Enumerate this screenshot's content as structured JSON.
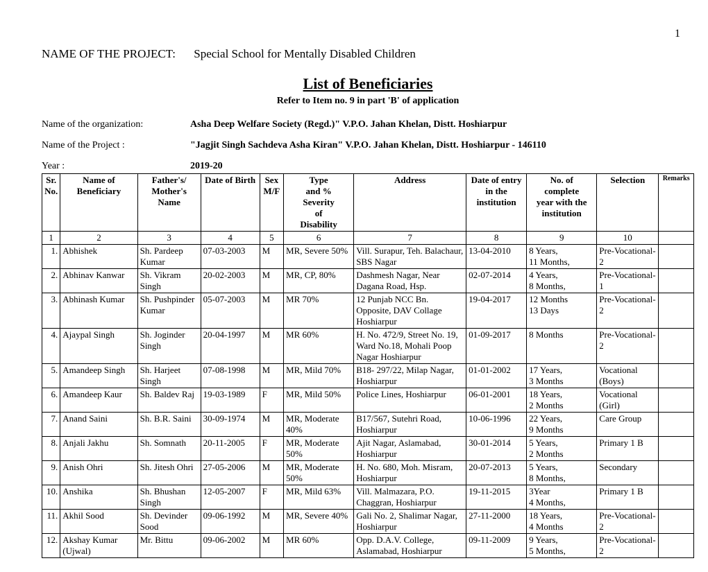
{
  "page_number": "1",
  "project_line": {
    "label": "NAME OF THE PROJECT:",
    "value": "Special School for Mentally Disabled Children"
  },
  "title": "List of Beneficiaries",
  "subtitle": "Refer to Item no. 9 in part 'B' of application",
  "meta": [
    {
      "label": "Name of the organization:",
      "value": "Asha Deep Welfare Society (Regd.)\" V.P.O. Jahan Khelan, Distt. Hoshiarpur"
    },
    {
      "label": "Name of the Project      :",
      "value": "\"Jagjit Singh Sachdeva Asha Kiran\" V.P.O. Jahan Khelan, Distt. Hoshiarpur - 146110"
    },
    {
      "label": "Year                             :",
      "value": "2019-20"
    }
  ],
  "columns": [
    {
      "key": "sr",
      "label": "Sr.\nNo.",
      "num": "1",
      "cls": "c-sr"
    },
    {
      "key": "name",
      "label": "Name of\nBeneficiary",
      "num": "2",
      "cls": "c-name"
    },
    {
      "key": "fname",
      "label": "Father's/\nMother's\nName",
      "num": "3",
      "cls": "c-fname"
    },
    {
      "key": "dob",
      "label": "Date of Birth",
      "num": "4",
      "cls": "c-dob"
    },
    {
      "key": "sex",
      "label": "Sex\nM/F",
      "num": "5",
      "cls": "c-sex"
    },
    {
      "key": "type",
      "label": "Type\nand %\nSeverity\nof\nDisability",
      "num": "6",
      "cls": "c-type"
    },
    {
      "key": "addr",
      "label": "Address",
      "num": "7",
      "cls": "c-addr"
    },
    {
      "key": "entry",
      "label": "Date of entry\nin the\ninstitution",
      "num": "8",
      "cls": "c-entry"
    },
    {
      "key": "year",
      "label": "No. of\ncomplete\nyear with the\ninstitution",
      "num": "9",
      "cls": "c-year"
    },
    {
      "key": "sel",
      "label": "Selection",
      "num": "10",
      "cls": "c-sel"
    },
    {
      "key": "rem",
      "label": "Remarks",
      "num": "",
      "cls": "c-rem"
    }
  ],
  "rows": [
    {
      "sr": "1.",
      "name": "Abhishek",
      "fname": "Sh. Pardeep Kumar",
      "dob": "07-03-2003",
      "sex": "M",
      "type": "MR, Severe 50%",
      "addr": "Vill. Surapur, Teh. Balachaur, SBS Nagar",
      "entry": "13-04-2010",
      "year": "8 Years,\n11 Months,",
      "sel": "Pre-Vocational-2",
      "rem": ""
    },
    {
      "sr": "2.",
      "name": "Abhinav Kanwar",
      "fname": "Sh. Vikram Singh",
      "dob": "20-02-2003",
      "sex": "M",
      "type": "MR, CP, 80%",
      "addr": "Dashmesh Nagar, Near Dagana Road, Hsp.",
      "entry": "02-07-2014",
      "year": "4 Years,\n8 Months,",
      "sel": "Pre-Vocational-1",
      "rem": ""
    },
    {
      "sr": "3.",
      "name": "Abhinash  Kumar",
      "fname": "Sh. Pushpinder Kumar",
      "dob": "05-07-2003",
      "sex": "M",
      "type": "MR 70%",
      "addr": "12 Punjab NCC Bn. Opposite, DAV Collage Hoshiarpur",
      "entry": "19-04-2017",
      "year": "12 Months\n13 Days",
      "sel": "Pre-Vocational-2",
      "rem": ""
    },
    {
      "sr": "4.",
      "name": "Ajaypal Singh",
      "fname": "Sh. Joginder Singh",
      "dob": "20-04-1997",
      "sex": "M",
      "type": "MR 60%",
      "addr": "H. No. 472/9, Street No. 19, Ward No.18, Mohali Poop Nagar Hoshiarpur",
      "entry": "01-09-2017",
      "year": "8 Months",
      "sel": "Pre-Vocational-2",
      "rem": ""
    },
    {
      "sr": "5.",
      "name": "Amandeep Singh",
      "fname": "Sh. Harjeet Singh",
      "dob": "07-08-1998",
      "sex": "M",
      "type": "MR, Mild 70%",
      "addr": "B18- 297/22, Milap Nagar, Hoshiarpur",
      "entry": "01-01-2002",
      "year": "17 Years,\n3 Months",
      "sel": "Vocational (Boys)",
      "rem": ""
    },
    {
      "sr": "6.",
      "name": "Amandeep Kaur",
      "fname": "Sh. Baldev Raj",
      "dob": "19-03-1989",
      "sex": "F",
      "type": "MR, Mild 50%",
      "addr": "Police Lines, Hoshiarpur",
      "entry": "06-01-2001",
      "year": "18 Years,\n2 Months",
      "sel": "Vocational (Girl)",
      "rem": ""
    },
    {
      "sr": "7.",
      "name": "Anand Saini",
      "fname": "Sh. B.R. Saini",
      "dob": "30-09-1974",
      "sex": "M",
      "type": "MR, Moderate 40%",
      "addr": "B17/567, Sutehri Road, Hoshiarpur",
      "entry": "10-06-1996",
      "year": "22 Years,\n9 Months",
      "sel": "Care Group",
      "rem": ""
    },
    {
      "sr": "8.",
      "name": "Anjali Jakhu",
      "fname": "Sh. Somnath",
      "dob": "20-11-2005",
      "sex": "F",
      "type": "MR, Moderate 50%",
      "addr": "Ajit Nagar, Aslamabad, Hoshiarpur",
      "entry": "30-01-2014",
      "year": "5 Years,\n2 Months",
      "sel": "Primary 1 B",
      "rem": ""
    },
    {
      "sr": "9.",
      "name": "Anish Ohri",
      "fname": "Sh. Jitesh Ohri",
      "dob": "27-05-2006",
      "sex": "M",
      "type": "MR, Moderate 50%",
      "addr": "H. No. 680, Moh. Misram, Hoshiarpur",
      "entry": "20-07-2013",
      "year": "5 Years,\n8 Months,",
      "sel": "Secondary",
      "rem": ""
    },
    {
      "sr": "10.",
      "name": "Anshika",
      "fname": "Sh. Bhushan Singh",
      "dob": "12-05-2007",
      "sex": "F",
      "type": "MR, Mild 63%",
      "addr": "Vill. Malmazara,     P.O. Chaggran, Hoshiarpur",
      "entry": "19-11-2015",
      "year": "3Year\n4 Months,",
      "sel": "Primary 1 B",
      "rem": ""
    },
    {
      "sr": "11.",
      "name": "Akhil Sood",
      "fname": "Sh. Devinder Sood",
      "dob": "09-06-1992",
      "sex": "M",
      "type": "MR, Severe 40%",
      "addr": "Gali No. 2, Shalimar Nagar, Hoshiarpur",
      "entry": "27-11-2000",
      "year": "18 Years,\n4 Months",
      "sel": "Pre-Vocational-2",
      "rem": ""
    },
    {
      "sr": "12.",
      "name": "Akshay Kumar (Ujwal)",
      "fname": "Mr. Bittu",
      "dob": "09-06-2002",
      "sex": "M",
      "type": "MR 60%",
      "addr": "Opp. D.A.V. College, Aslamabad, Hoshiarpur",
      "entry": "09-11-2009",
      "year": "9 Years,\n5 Months,",
      "sel": "Pre-Vocational-2",
      "rem": ""
    }
  ]
}
